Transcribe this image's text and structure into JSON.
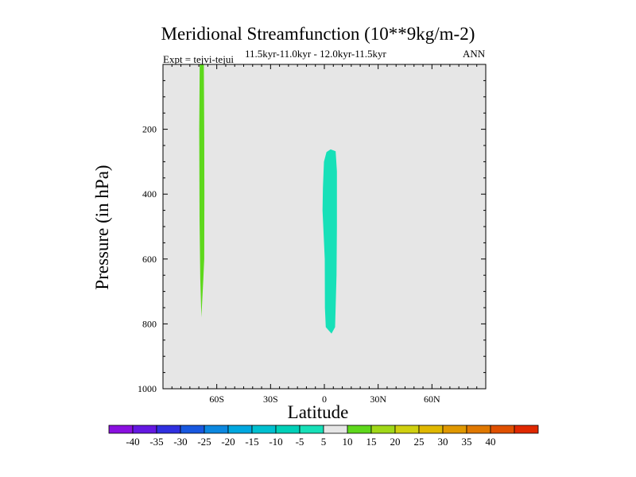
{
  "chart_data": {
    "type": "contour",
    "title": "Meridional Streamfunction (10**9kg/m-2)",
    "subtitle": "11.5kyr-11.0kyr - 12.0kyr-11.5kyr",
    "experiment": "Expt = tejvi-tejui",
    "season": "ANN",
    "xlabel": "Latitude",
    "ylabel": "Pressure (in hPa)",
    "xlim": [
      -90,
      90
    ],
    "ylim": [
      1000,
      0
    ],
    "x_ticks": [
      {
        "value": -60,
        "label": "60S"
      },
      {
        "value": -30,
        "label": "30S"
      },
      {
        "value": 0,
        "label": "0"
      },
      {
        "value": 30,
        "label": "30N"
      },
      {
        "value": 60,
        "label": "60N"
      }
    ],
    "y_ticks": [
      {
        "value": 200,
        "label": "200"
      },
      {
        "value": 400,
        "label": "400"
      },
      {
        "value": 600,
        "label": "600"
      },
      {
        "value": 800,
        "label": "800"
      },
      {
        "value": 1000,
        "label": "1000"
      }
    ],
    "background_color": "#e6e6e6",
    "regions": [
      {
        "name": "sh-positive-band",
        "level": "5 to 10",
        "color": "#5ed81c",
        "outline": [
          [
            -69.5,
            0
          ],
          [
            -67.2,
            0
          ],
          [
            -67.0,
            200
          ],
          [
            -66.9,
            400
          ],
          [
            -67.0,
            600
          ],
          [
            -67.5,
            660
          ],
          [
            -68.6,
            780
          ],
          [
            -69.2,
            660
          ],
          [
            -69.6,
            480
          ],
          [
            -69.8,
            200
          ]
        ]
      },
      {
        "name": "equatorial-negative-band",
        "level": "-10 to -5",
        "color": "#17e0b8",
        "outline": [
          [
            3.5,
            262
          ],
          [
            6.3,
            268
          ],
          [
            7.0,
            330
          ],
          [
            7.0,
            500
          ],
          [
            6.8,
            650
          ],
          [
            6.0,
            810
          ],
          [
            4.0,
            830
          ],
          [
            0.8,
            810
          ],
          [
            0.3,
            750
          ],
          [
            0.2,
            600
          ],
          [
            -1.0,
            450
          ],
          [
            -0.8,
            380
          ],
          [
            -0.2,
            300
          ],
          [
            1.2,
            270
          ]
        ]
      }
    ],
    "colorbar": {
      "labels": [
        "-40",
        "-35",
        "-30",
        "-25",
        "-20",
        "-15",
        "-10",
        "-5",
        "5",
        "10",
        "15",
        "20",
        "25",
        "30",
        "35",
        "40"
      ],
      "colors": [
        "#8a10e0",
        "#6418e2",
        "#3030e0",
        "#1858e0",
        "#0c88e0",
        "#00a8e0",
        "#00c0d0",
        "#00d0b8",
        "#17e0b8",
        "#e6e6e6",
        "#5ed81c",
        "#a0d818",
        "#d0d010",
        "#e0b800",
        "#e09800",
        "#e07800",
        "#e05000",
        "#e02800"
      ]
    }
  }
}
